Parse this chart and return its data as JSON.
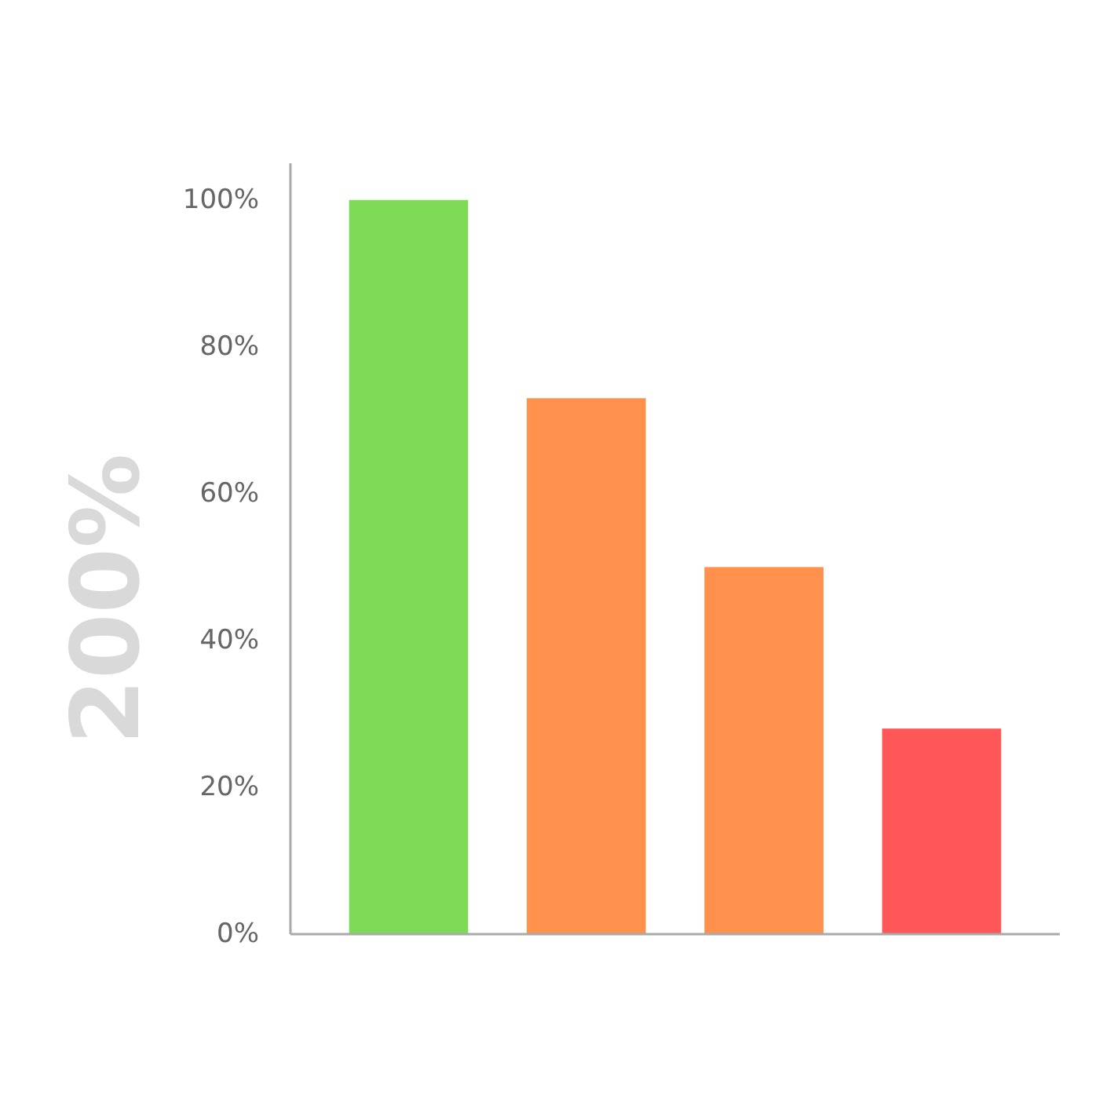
{
  "chart_data": {
    "type": "bar",
    "ylabel": "200%",
    "categories": [
      null,
      null,
      null,
      null
    ],
    "values": [
      100,
      73,
      50,
      28
    ],
    "colors": [
      "#7ed957",
      "#ff914d",
      "#ff914d",
      "#ff5757"
    ],
    "ylim": [
      0,
      105
    ],
    "yticks": [
      {
        "value": 0,
        "label": "0%"
      },
      {
        "value": 20,
        "label": "20%"
      },
      {
        "value": 40,
        "label": "40%"
      },
      {
        "value": 60,
        "label": "60%"
      },
      {
        "value": 80,
        "label": "80%"
      },
      {
        "value": 100,
        "label": "100%"
      }
    ],
    "grid": false
  }
}
